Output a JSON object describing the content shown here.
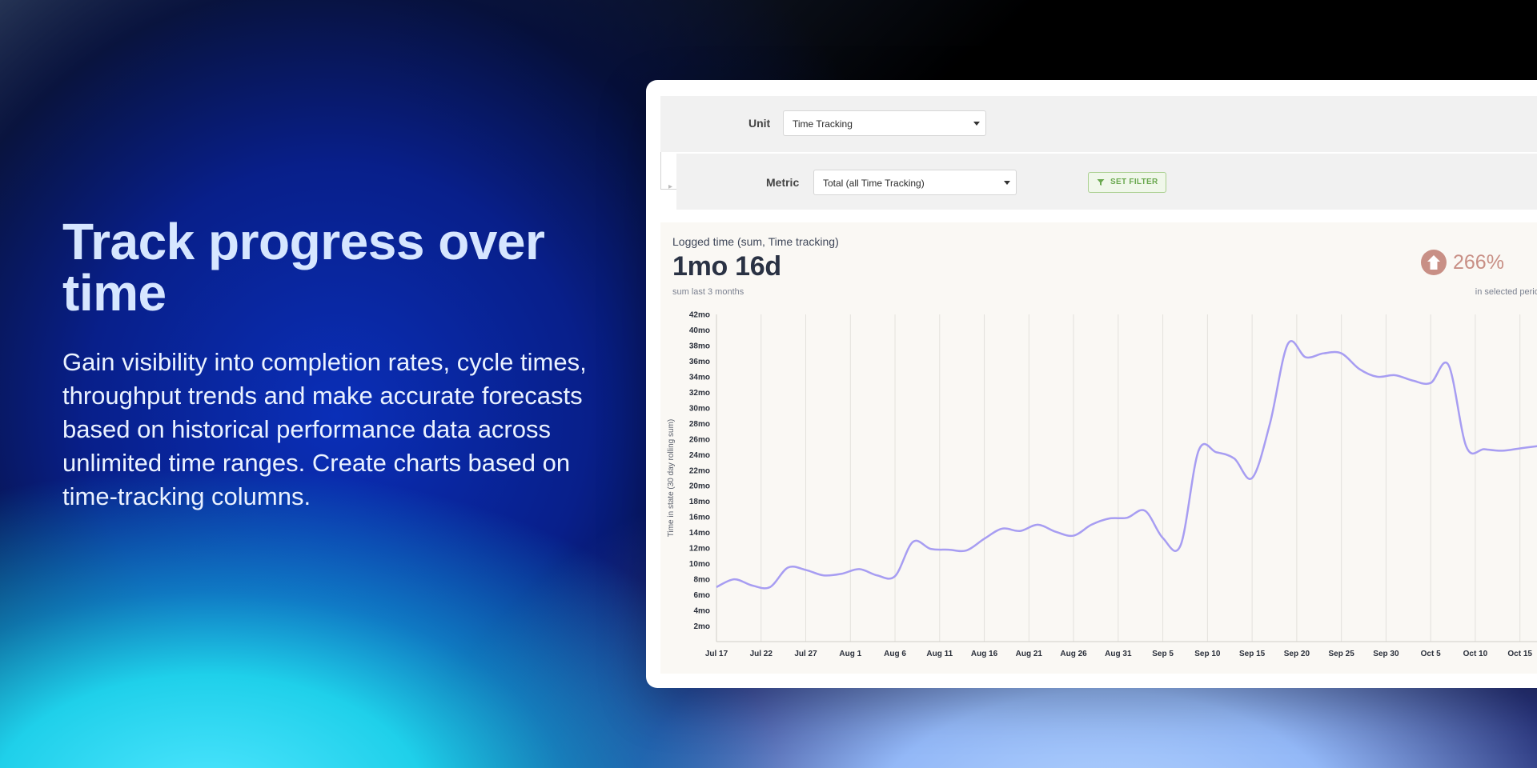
{
  "hero": {
    "title": "Track progress over time",
    "description": "Gain visibility into completion rates, cycle times, throughput trends and make accurate forecasts based on historical performance data across unlimited time ranges. Create charts based on time-tracking columns."
  },
  "filters": {
    "unit_label": "Unit",
    "unit_value": "Time Tracking",
    "metric_label": "Metric",
    "metric_value": "Total (all Time Tracking)",
    "set_filter_label": "SET FILTER"
  },
  "summary": {
    "title": "Logged time (sum, Time tracking)",
    "value": "1mo 16d",
    "value_sub": "sum last 3 months",
    "trend_icon": "arrow-up-circle-icon",
    "trend_value": "266%",
    "trend_sub": "in selected period",
    "trend_color": "#c88f85"
  },
  "colors": {
    "line": "#a79df2",
    "grid": "#e3e1dc"
  },
  "chart_data": {
    "type": "line",
    "ylabel": "Time in state (30 day rolling sum)",
    "y_ticks": [
      "2mo",
      "4mo",
      "6mo",
      "8mo",
      "10mo",
      "12mo",
      "14mo",
      "16mo",
      "18mo",
      "20mo",
      "22mo",
      "24mo",
      "26mo",
      "28mo",
      "30mo",
      "32mo",
      "34mo",
      "36mo",
      "38mo",
      "40mo",
      "42mo"
    ],
    "ylim": [
      0,
      42
    ],
    "x_ticks": [
      "Jul 17",
      "Jul 22",
      "Jul 27",
      "Aug 1",
      "Aug 6",
      "Aug 11",
      "Aug 16",
      "Aug 21",
      "Aug 26",
      "Aug 31",
      "Sep 5",
      "Sep 10",
      "Sep 15",
      "Sep 20",
      "Sep 25",
      "Sep 30",
      "Oct 5",
      "Oct 10",
      "Oct 15"
    ],
    "xlim": [
      "Jul 17",
      "Oct 17"
    ],
    "grid": true,
    "series": [
      {
        "x": [
          "Jul 17",
          "Jul 19",
          "Jul 21",
          "Jul 23",
          "Jul 25",
          "Jul 27",
          "Jul 29",
          "Jul 31",
          "Aug 2",
          "Aug 4",
          "Aug 6",
          "Aug 8",
          "Aug 10",
          "Aug 12",
          "Aug 14",
          "Aug 16",
          "Aug 18",
          "Aug 20",
          "Aug 22",
          "Aug 24",
          "Aug 26",
          "Aug 28",
          "Aug 30",
          "Sep 1",
          "Sep 3",
          "Sep 5",
          "Sep 7",
          "Sep 9",
          "Sep 11",
          "Sep 13",
          "Sep 15",
          "Sep 17",
          "Sep 19",
          "Sep 21",
          "Sep 23",
          "Sep 25",
          "Sep 27",
          "Sep 29",
          "Oct 1",
          "Oct 3",
          "Oct 5",
          "Oct 7",
          "Oct 9",
          "Oct 11",
          "Oct 13",
          "Oct 15",
          "Oct 17"
        ],
        "values": [
          7,
          8,
          7.2,
          7,
          9.5,
          9.2,
          8.5,
          8.7,
          9.3,
          8.5,
          8.4,
          12.8,
          11.9,
          11.8,
          11.7,
          13.2,
          14.5,
          14.2,
          15,
          14.1,
          13.6,
          15,
          15.8,
          15.9,
          16.8,
          13.3,
          12.4,
          24.5,
          24.3,
          23.5,
          21,
          28,
          38.2,
          36.5,
          37,
          37,
          35,
          34,
          34.2,
          33.5,
          33.2,
          35.5,
          25,
          24.7,
          24.5,
          24.8,
          25.1
        ]
      }
    ]
  }
}
